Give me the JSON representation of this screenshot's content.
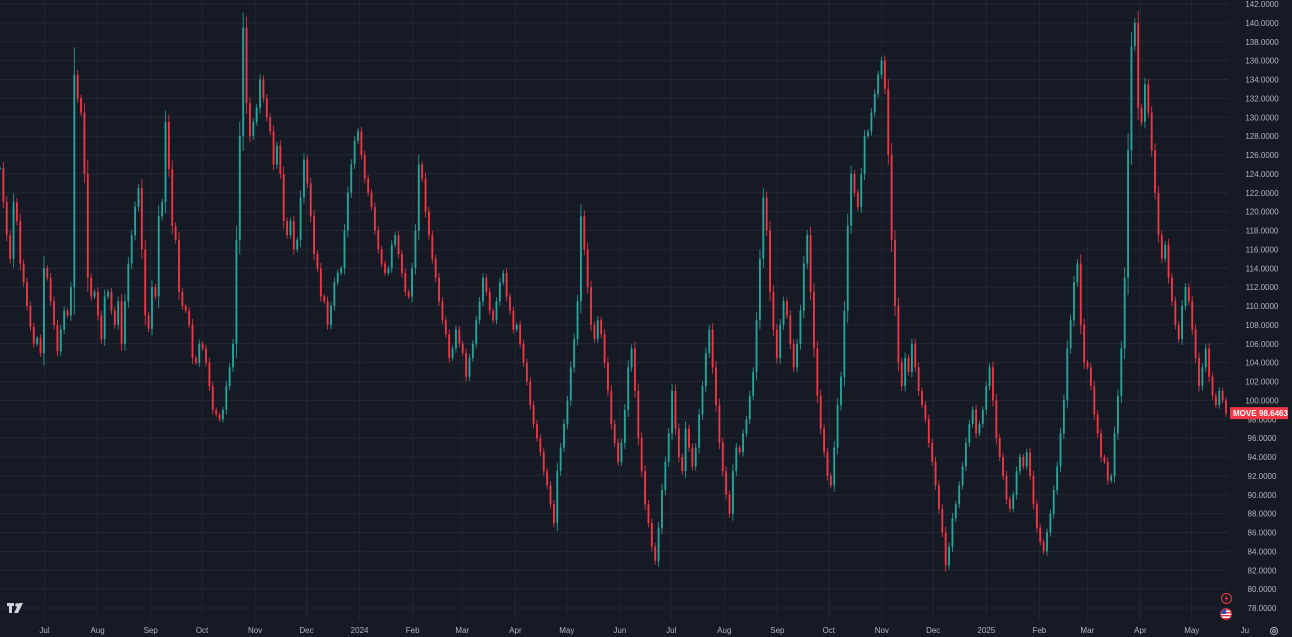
{
  "chart_data": {
    "type": "candlestick",
    "symbol": "MOVE",
    "last_value": 98.6463,
    "last_value_label": "98.6463",
    "colors": {
      "up": "#26a69a",
      "down": "#f23645",
      "background": "#161a25",
      "grid": "#232733",
      "axis_text": "#b2b5be"
    },
    "ylim": [
      77,
      142
    ],
    "y_ticks": [
      "78.0000",
      "80.0000",
      "82.0000",
      "84.0000",
      "86.0000",
      "88.0000",
      "90.0000",
      "92.0000",
      "94.0000",
      "96.0000",
      "98.0000",
      "100.0000",
      "102.0000",
      "104.0000",
      "106.0000",
      "108.0000",
      "110.0000",
      "112.0000",
      "114.0000",
      "116.0000",
      "118.0000",
      "120.0000",
      "122.0000",
      "124.0000",
      "126.0000",
      "128.0000",
      "130.0000",
      "132.0000",
      "134.0000",
      "136.0000",
      "138.0000",
      "140.0000",
      "142.0000"
    ],
    "x_ticks": [
      {
        "label": "Jul",
        "date": "2023-07-01"
      },
      {
        "label": "Aug",
        "date": "2023-08-01"
      },
      {
        "label": "Sep",
        "date": "2023-09-01"
      },
      {
        "label": "Oct",
        "date": "2023-10-01"
      },
      {
        "label": "Nov",
        "date": "2023-11-01"
      },
      {
        "label": "Dec",
        "date": "2023-12-01"
      },
      {
        "label": "2024",
        "date": "2024-01-01"
      },
      {
        "label": "Feb",
        "date": "2024-02-01"
      },
      {
        "label": "Mar",
        "date": "2024-03-01"
      },
      {
        "label": "Apr",
        "date": "2024-04-01"
      },
      {
        "label": "May",
        "date": "2024-05-01"
      },
      {
        "label": "Jun",
        "date": "2024-06-01"
      },
      {
        "label": "Jul",
        "date": "2024-07-01"
      },
      {
        "label": "Aug",
        "date": "2024-08-01"
      },
      {
        "label": "Sep",
        "date": "2024-09-01"
      },
      {
        "label": "Oct",
        "date": "2024-10-01"
      },
      {
        "label": "Nov",
        "date": "2024-11-01"
      },
      {
        "label": "Dec",
        "date": "2024-12-01"
      },
      {
        "label": "2025",
        "date": "2025-01-01"
      },
      {
        "label": "Feb",
        "date": "2025-02-01"
      },
      {
        "label": "Mar",
        "date": "2025-03-01"
      },
      {
        "label": "Apr",
        "date": "2025-04-01"
      },
      {
        "label": "May",
        "date": "2025-05-01"
      },
      {
        "label": "Ju",
        "date": "2025-06-01"
      }
    ],
    "close_series": [
      124.6,
      121.0,
      117.5,
      115.0,
      121.0,
      119.0,
      114.5,
      112.5,
      110.0,
      107.8,
      106.0,
      106.6,
      105.0,
      114.0,
      113.0,
      110.5,
      108.0,
      105.2,
      107.5,
      109.5,
      109.0,
      112.0,
      134.5,
      132.0,
      130.5,
      124.0,
      113.0,
      111.0,
      111.5,
      109.0,
      106.5,
      111.0,
      111.5,
      109.5,
      108.0,
      110.5,
      106.0,
      110.5,
      114.5,
      117.5,
      120.5,
      122.5,
      116.0,
      109.0,
      107.6,
      112.0,
      111.0,
      119.5,
      121.0,
      129.5,
      124.5,
      118.5,
      117.0,
      111.5,
      110.0,
      109.5,
      108.0,
      104.5,
      104.0,
      106.0,
      105.5,
      104.0,
      101.5,
      99.0,
      98.5,
      98.0,
      99.0,
      101.5,
      103.5,
      106.0,
      117.0,
      128.0,
      139.5,
      131.5,
      128.0,
      129.5,
      131.0,
      134.0,
      132.0,
      130.0,
      128.5,
      125.0,
      127.0,
      124.0,
      119.0,
      117.5,
      119.0,
      116.0,
      117.0,
      121.5,
      125.5,
      123.0,
      119.5,
      115.5,
      114.0,
      111.0,
      110.5,
      108.0,
      110.0,
      112.5,
      113.5,
      114.0,
      118.0,
      122.0,
      125.0,
      127.5,
      128.5,
      126.0,
      123.5,
      122.0,
      120.5,
      118.0,
      116.0,
      114.5,
      113.5,
      114.0,
      116.5,
      117.5,
      115.5,
      113.5,
      111.5,
      111.0,
      114.0,
      118.0,
      125.0,
      123.5,
      120.0,
      117.5,
      115.0,
      113.0,
      110.5,
      108.5,
      107.0,
      104.5,
      105.5,
      107.5,
      106.0,
      105.0,
      102.5,
      104.5,
      106.0,
      108.5,
      110.5,
      113.0,
      111.5,
      109.5,
      108.5,
      110.5,
      112.5,
      113.5,
      111.0,
      109.5,
      107.5,
      108.0,
      106.0,
      104.0,
      102.0,
      99.5,
      97.5,
      96.0,
      94.5,
      92.5,
      91.0,
      89.0,
      87.0,
      92.5,
      95.0,
      97.5,
      100.0,
      103.5,
      106.5,
      110.5,
      119.5,
      116.0,
      112.0,
      108.0,
      106.5,
      108.5,
      107.0,
      104.0,
      101.0,
      97.5,
      95.5,
      93.5,
      95.5,
      99.0,
      103.5,
      105.5,
      101.0,
      96.0,
      92.5,
      89.0,
      87.0,
      84.5,
      83.0,
      86.5,
      90.5,
      93.5,
      96.5,
      101.0,
      97.0,
      94.0,
      92.5,
      97.0,
      95.0,
      93.0,
      95.0,
      98.5,
      101.5,
      105.0,
      107.5,
      103.5,
      99.5,
      95.5,
      92.5,
      90.0,
      88.0,
      92.5,
      95.0,
      94.5,
      96.5,
      98.0,
      100.5,
      103.0,
      108.5,
      115.0,
      121.5,
      118.0,
      111.5,
      107.5,
      104.5,
      108.0,
      110.5,
      109.0,
      106.0,
      103.5,
      106.0,
      109.5,
      114.5,
      117.5,
      111.5,
      105.5,
      100.5,
      97.0,
      94.5,
      92.0,
      91.0,
      95.0,
      99.5,
      102.5,
      109.5,
      118.5,
      124.0,
      122.0,
      120.5,
      124.0,
      128.0,
      128.5,
      130.5,
      132.5,
      134.5,
      136.0,
      133.0,
      126.0,
      117.0,
      110.0,
      104.0,
      101.5,
      104.5,
      103.0,
      106.0,
      103.5,
      101.0,
      99.5,
      98.0,
      95.5,
      93.5,
      91.0,
      88.5,
      86.0,
      82.5,
      84.5,
      87.5,
      89.0,
      91.0,
      93.0,
      95.5,
      97.5,
      99.0,
      96.5,
      97.5,
      99.0,
      101.5,
      103.5,
      100.0,
      96.0,
      94.0,
      92.0,
      89.5,
      88.5,
      90.0,
      92.5,
      94.0,
      93.0,
      94.5,
      92.0,
      89.0,
      86.5,
      85.0,
      84.0,
      86.0,
      88.0,
      90.5,
      93.0,
      96.5,
      100.0,
      105.5,
      108.5,
      112.5,
      114.5,
      108.0,
      104.0,
      103.5,
      101.5,
      98.5,
      96.5,
      94.0,
      93.5,
      91.5,
      92.0,
      96.5,
      100.5,
      105.5,
      113.0,
      126.5,
      137.5,
      140.0,
      131.0,
      129.5,
      133.5,
      130.5,
      126.5,
      122.0,
      117.5,
      115.0,
      116.5,
      113.0,
      110.5,
      108.0,
      106.5,
      110.0,
      112.0,
      110.5,
      107.5,
      104.5,
      101.5,
      103.5,
      105.5,
      102.5,
      100.5,
      99.5,
      101.0,
      100.0,
      98.6
    ],
    "start_date": "2023-06-05",
    "end_date": "2025-05-21"
  },
  "icons": {
    "logo": "tradingview-logo-icon",
    "flag": "us-flag-icon",
    "lightning": "lightning-icon",
    "settings": "gear-icon"
  }
}
